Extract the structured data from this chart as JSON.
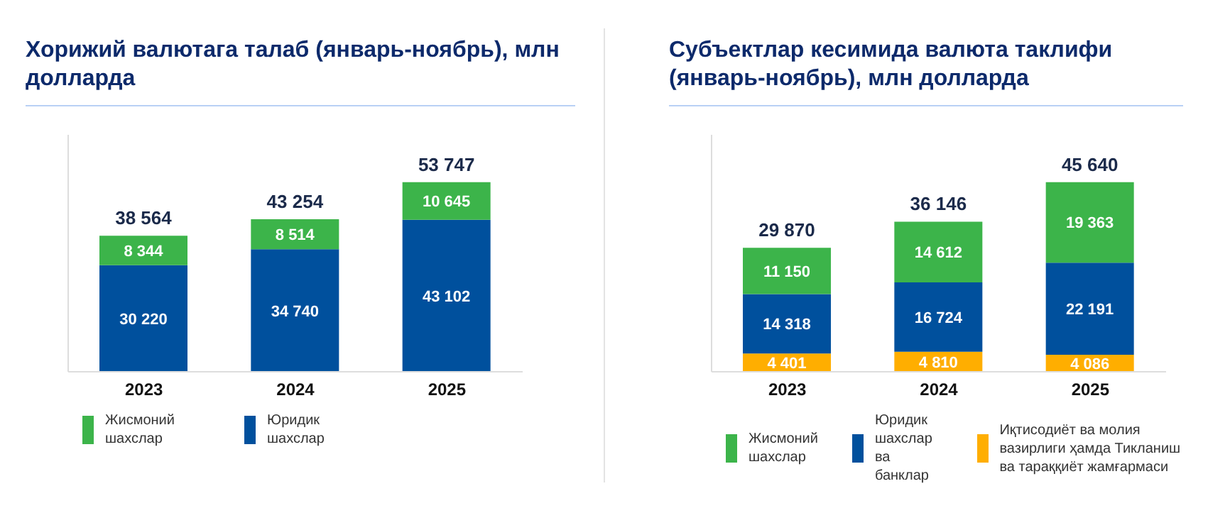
{
  "chart_data": [
    {
      "type": "bar",
      "title": "Хорижий валютага талаб (январь-ноябрь), млн долларда",
      "categories": [
        "2023",
        "2024",
        "2025"
      ],
      "stacked": true,
      "tick_labels": "x",
      "legend": "bottom",
      "series": [
        {
          "name": "Юридик шахслар",
          "color": "#00509d",
          "values": [
            30220,
            34740,
            43102
          ],
          "value_labels": [
            "30 220",
            "34 740",
            "43 102"
          ]
        },
        {
          "name": "Жисмоний шахслар",
          "color": "#3cb44a",
          "values": [
            8344,
            8514,
            10645
          ],
          "value_labels": [
            "8 344",
            "8 514",
            "10 645"
          ]
        }
      ],
      "totals": [
        "38 564",
        "43 254",
        "53 747"
      ]
    },
    {
      "type": "bar",
      "title": "Субъектлар кесимида валюта таклифи (январь-ноябрь), млн долларда",
      "categories": [
        "2023",
        "2024",
        "2025"
      ],
      "stacked": true,
      "tick_labels": "x",
      "legend": "bottom",
      "series": [
        {
          "name": "Иқтисодиёт ва молия вазирлиги ҳамда Тикланиш ва тараққиёт жамғармаси",
          "color": "#ffae00",
          "values": [
            4401,
            4810,
            4086
          ],
          "value_labels": [
            "4 401",
            "4 810",
            "4 086"
          ]
        },
        {
          "name": "Юридик шахслар ва банклар",
          "color": "#00509d",
          "values": [
            14318,
            16724,
            22191
          ],
          "value_labels": [
            "14 318",
            "16 724",
            "22 191"
          ]
        },
        {
          "name": "Жисмоний шахслар",
          "color": "#3cb44a",
          "values": [
            11150,
            14612,
            19363
          ],
          "value_labels": [
            "11 150",
            "14 612",
            "19 363"
          ]
        }
      ],
      "totals": [
        "29 870",
        "36 146",
        "45 640"
      ]
    }
  ]
}
